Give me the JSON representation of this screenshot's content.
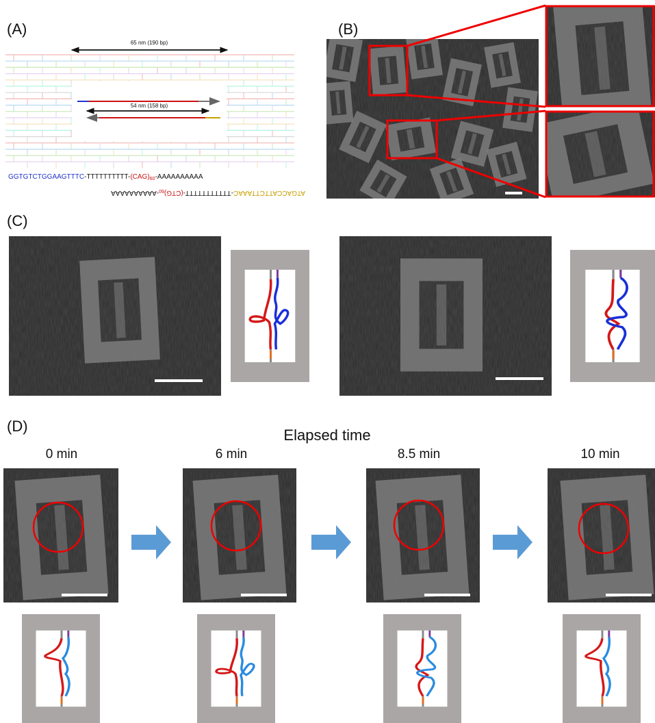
{
  "panel_labels": [
    "(A)",
    "(B)",
    "(C)",
    "(D)"
  ],
  "panel_a": {
    "outer_length": "65 nm (190 bp)",
    "inner_length": "54 nm (158 bp)",
    "top_strand": [
      "GGTGTCTGGAAGTTTC",
      "-TTTTTTTTTT-",
      "(CAG)",
      "60",
      "-AAAAAAAAAA"
    ],
    "bottom_strand": [
      "ATGACCATTCTTAAAC",
      "-TTTTTTTTTTT-",
      "(CTG)",
      "60",
      "-AAAAAAAAAA"
    ]
  },
  "panel_d": {
    "title": "Elapsed time",
    "times": [
      "0 min",
      "6 min",
      "8.5 min",
      "10 min"
    ]
  }
}
